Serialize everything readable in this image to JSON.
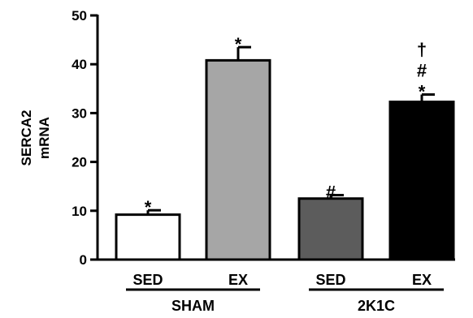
{
  "chart_data": {
    "type": "bar",
    "title": "",
    "xlabel": "",
    "ylabel_lines": [
      "SERCA2",
      "mRNA"
    ],
    "ylim": [
      0,
      50
    ],
    "yticks": [
      0,
      10,
      20,
      30,
      40,
      50
    ],
    "grid": false,
    "categories": [
      "SED",
      "EX",
      "SED",
      "EX"
    ],
    "groups": [
      {
        "label": "SHAM",
        "categories": [
          0,
          1
        ]
      },
      {
        "label": "2K1C",
        "categories": [
          2,
          3
        ]
      }
    ],
    "values": [
      9.2,
      40.8,
      12.5,
      32.3
    ],
    "errors": [
      0.9,
      2.7,
      0.7,
      1.5
    ],
    "bar_colors": [
      "#ffffff",
      "#a6a6a6",
      "#5c5c5c",
      "#000000"
    ],
    "annotations": [
      [
        "*"
      ],
      [
        "*"
      ],
      [
        "#"
      ],
      [
        "*",
        "#",
        "†"
      ]
    ]
  }
}
